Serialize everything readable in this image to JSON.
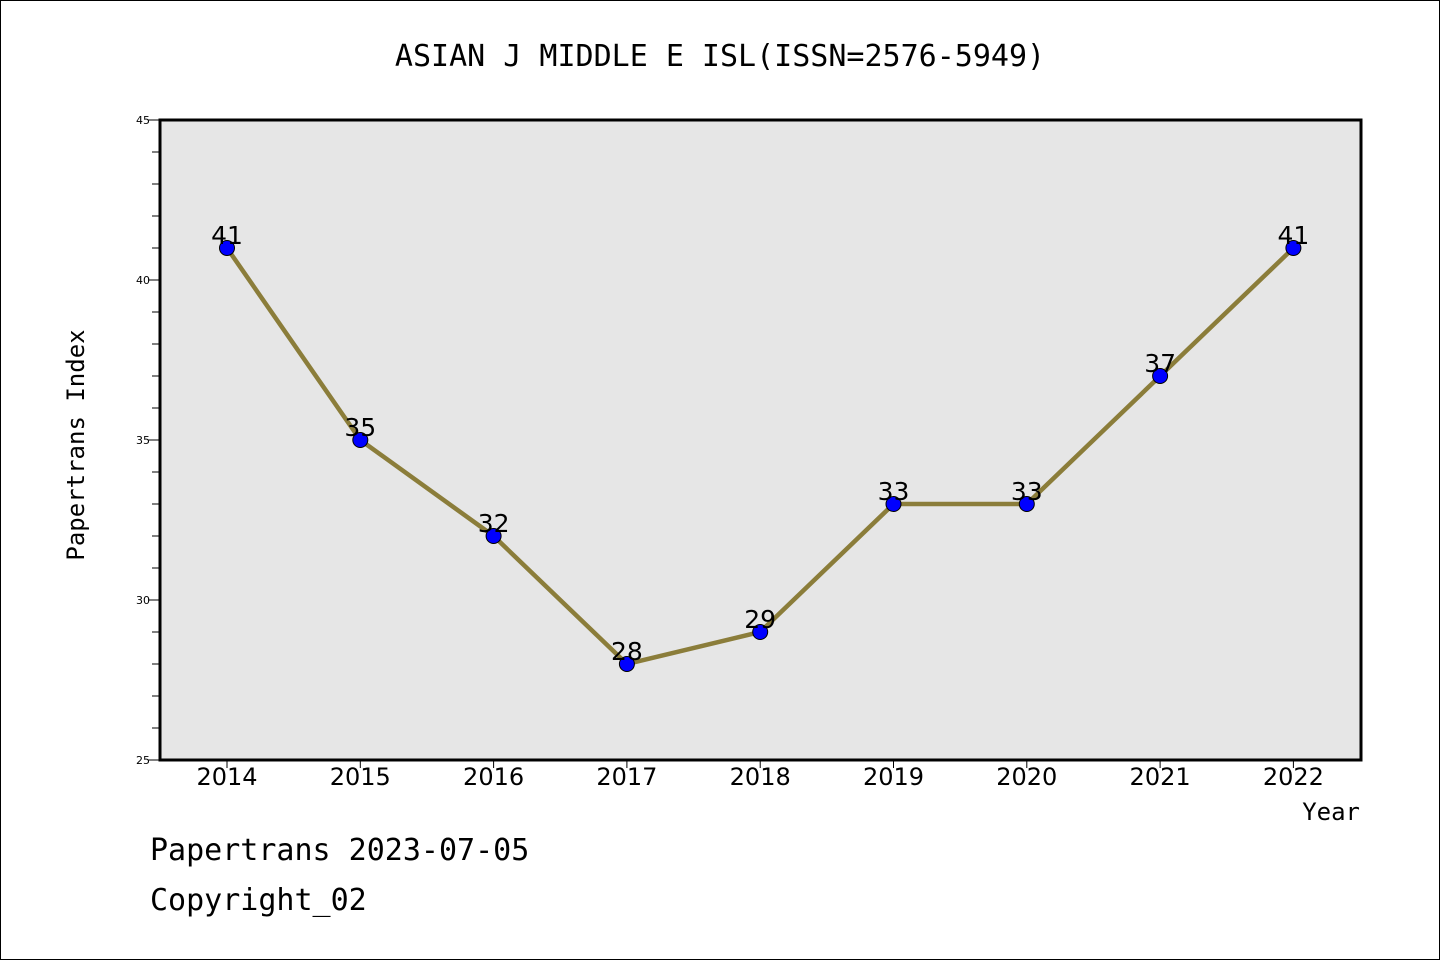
{
  "chart_data": {
    "type": "line",
    "title": "ASIAN J MIDDLE E ISL(ISSN=2576-5949)",
    "xlabel": "Year",
    "ylabel": "Papertrans Index",
    "categories": [
      "2014",
      "2015",
      "2016",
      "2017",
      "2018",
      "2019",
      "2020",
      "2021",
      "2022"
    ],
    "values": [
      41,
      35,
      32,
      28,
      29,
      33,
      33,
      37,
      41
    ],
    "ylim": [
      25,
      45
    ],
    "yticks": [
      25,
      30,
      35,
      40,
      45
    ],
    "grid": false,
    "colors": {
      "line": "#8B7D3A",
      "marker": "#0000FF",
      "plot_background": "#E6E6E6"
    }
  },
  "footer": {
    "line1": "Papertrans 2023-07-05",
    "line2": "Copyright_02"
  }
}
